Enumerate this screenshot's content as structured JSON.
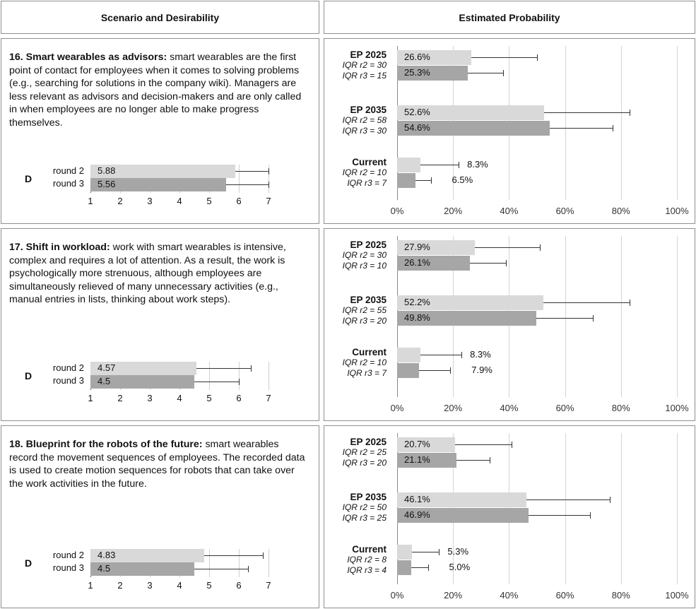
{
  "headers": {
    "left": "Scenario and Desirability",
    "right": "Estimated Probability"
  },
  "rows": [
    {
      "num_title": "16. Smart wearables as advisors:",
      "text": " smart wearables are the first point of contact for employees when it comes to solving problems (e.g., searching for solutions in the company wiki). Managers are less relevant as advisors and decision-makers and are only called in when employees are no longer able to make progress themselves.",
      "desirability": {
        "label": "D",
        "round2_label": "round 2",
        "round3_label": "round 3",
        "round2": 5.88,
        "round3": 5.56,
        "round2_text": "5.88",
        "round3_text": "5.56",
        "round2_err": 7,
        "round3_err": 7
      },
      "groups": [
        {
          "name": "EP 2025",
          "iqr2": "IQR r2 = 30",
          "iqr3": "IQR r3 = 15",
          "r2": 26.6,
          "r3": 25.3,
          "r2_text": "26.6%",
          "r3_text": "25.3%",
          "r2_err": 50,
          "r3_err": 38,
          "label_out": false
        },
        {
          "name": "EP 2035",
          "iqr2": "IQR r2 = 58",
          "iqr3": "IQR r3 = 30",
          "r2": 52.6,
          "r3": 54.6,
          "r2_text": "52.6%",
          "r3_text": "54.6%",
          "r2_err": 83,
          "r3_err": 77,
          "label_out": false
        },
        {
          "name": "Current",
          "iqr2": "IQR r2 = 10",
          "iqr3": "IQR r3 = 7",
          "r2": 8.3,
          "r3": 6.5,
          "r2_text": "8.3%",
          "r3_text": "6.5%",
          "r2_err": 22,
          "r3_err": 12,
          "label_out": true
        }
      ]
    },
    {
      "num_title": "17. Shift in workload:",
      "text": " work with smart wearables is intensive, complex and requires a lot of attention. As a result, the work is psychologically more strenuous, although employees are simultaneously relieved of many unnecessary activities (e.g., manual entries in lists, thinking about work steps).",
      "desirability": {
        "label": "D",
        "round2_label": "round 2",
        "round3_label": "round 3",
        "round2": 4.57,
        "round3": 4.5,
        "round2_text": "4.57",
        "round3_text": "4.5",
        "round2_err": 6.4,
        "round3_err": 6
      },
      "groups": [
        {
          "name": "EP 2025",
          "iqr2": "IQR r2 = 30",
          "iqr3": "IQR r3 = 10",
          "r2": 27.9,
          "r3": 26.1,
          "r2_text": "27.9%",
          "r3_text": "26.1%",
          "r2_err": 51,
          "r3_err": 39,
          "label_out": false
        },
        {
          "name": "EP 2035",
          "iqr2": "IQR r2 = 55",
          "iqr3": "IQR r3 = 20",
          "r2": 52.2,
          "r3": 49.8,
          "r2_text": "52.2%",
          "r3_text": "49.8%",
          "r2_err": 83,
          "r3_err": 70,
          "label_out": false
        },
        {
          "name": "Current",
          "iqr2": "IQR r2 = 10",
          "iqr3": "IQR r3 = 7",
          "r2": 8.3,
          "r3": 7.9,
          "r2_text": "8.3%",
          "r3_text": "7.9%",
          "r2_err": 23,
          "r3_err": 19,
          "label_out": true
        }
      ]
    },
    {
      "num_title": "18. Blueprint for the robots of the future:",
      "text": " smart wearables record the movement sequences of employees. The recorded data is used to create motion sequences for robots that can take over the work activities in the future.",
      "desirability": {
        "label": "D",
        "round2_label": "round 2",
        "round3_label": "round 3",
        "round2": 4.83,
        "round3": 4.5,
        "round2_text": "4.83",
        "round3_text": "4.5",
        "round2_err": 6.8,
        "round3_err": 6.3
      },
      "groups": [
        {
          "name": "EP 2025",
          "iqr2": "IQR r2 = 25",
          "iqr3": "IQR r3 = 20",
          "r2": 20.7,
          "r3": 21.1,
          "r2_text": "20.7%",
          "r3_text": "21.1%",
          "r2_err": 41,
          "r3_err": 33,
          "label_out": false
        },
        {
          "name": "EP 2035",
          "iqr2": "IQR r2 = 50",
          "iqr3": "IQR r3 = 25",
          "r2": 46.1,
          "r3": 46.9,
          "r2_text": "46.1%",
          "r3_text": "46.9%",
          "r2_err": 76,
          "r3_err": 69,
          "label_out": false
        },
        {
          "name": "Current",
          "iqr2": "IQR r2 = 8",
          "iqr3": "IQR r3 = 4",
          "r2": 5.3,
          "r3": 5.0,
          "r2_text": "5.3%",
          "r3_text": "5.0%",
          "r2_err": 15,
          "r3_err": 11,
          "label_out": true
        }
      ]
    }
  ],
  "d_ticks": [
    "1",
    "2",
    "3",
    "4",
    "5",
    "6",
    "7"
  ],
  "p_ticks": [
    "0%",
    "20%",
    "40%",
    "60%",
    "80%",
    "100%"
  ],
  "colors": {
    "round2": "#d9d9d9",
    "round3": "#a6a6a6",
    "border": "#8f8f8f"
  },
  "chart_data": [
    {
      "type": "bar",
      "title": "",
      "categories": [
        "round 2",
        "round 3"
      ],
      "series": [
        {
          "name": "",
          "values": [
            5.88,
            5.56
          ]
        }
      ],
      "xlim": [
        1,
        7
      ]
    },
    {
      "type": "bar",
      "title": "",
      "categories": [
        "EP 2025",
        "EP 2035",
        "Current"
      ],
      "series": [
        {
          "name": "round 2",
          "values": [
            26.6,
            52.6,
            8.3
          ]
        },
        {
          "name": "round 3",
          "values": [
            25.3,
            54.6,
            6.5
          ]
        }
      ],
      "xlim": [
        0,
        100
      ]
    },
    {
      "type": "bar",
      "title": "",
      "categories": [
        "round 2",
        "round 3"
      ],
      "series": [
        {
          "name": "",
          "values": [
            4.57,
            4.5
          ]
        }
      ],
      "xlim": [
        1,
        7
      ]
    },
    {
      "type": "bar",
      "title": "",
      "categories": [
        "EP 2025",
        "EP 2035",
        "Current"
      ],
      "series": [
        {
          "name": "round 2",
          "values": [
            27.9,
            52.2,
            8.3
          ]
        },
        {
          "name": "round 3",
          "values": [
            26.1,
            49.8,
            7.9
          ]
        }
      ],
      "xlim": [
        0,
        100
      ]
    },
    {
      "type": "bar",
      "title": "",
      "categories": [
        "round 2",
        "round 3"
      ],
      "series": [
        {
          "name": "",
          "values": [
            4.83,
            4.5
          ]
        }
      ],
      "xlim": [
        1,
        7
      ]
    },
    {
      "type": "bar",
      "title": "",
      "categories": [
        "EP 2025",
        "EP 2035",
        "Current"
      ],
      "series": [
        {
          "name": "round 2",
          "values": [
            20.7,
            46.1,
            5.3
          ]
        },
        {
          "name": "round 3",
          "values": [
            21.1,
            46.9,
            5.0
          ]
        }
      ],
      "xlim": [
        0,
        100
      ]
    }
  ]
}
